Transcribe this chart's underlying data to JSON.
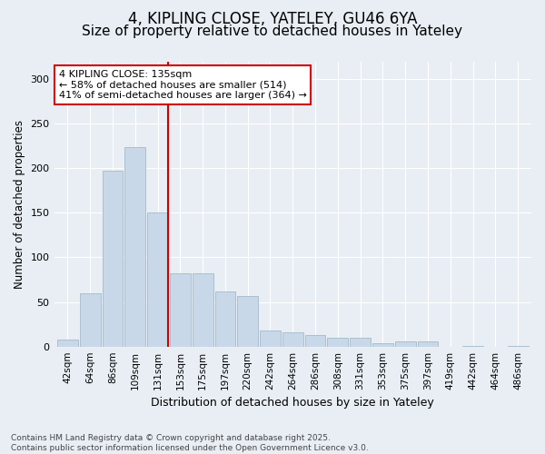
{
  "title1": "4, KIPLING CLOSE, YATELEY, GU46 6YA",
  "title2": "Size of property relative to detached houses in Yateley",
  "xlabel": "Distribution of detached houses by size in Yateley",
  "ylabel": "Number of detached properties",
  "categories": [
    "42sqm",
    "64sqm",
    "86sqm",
    "109sqm",
    "131sqm",
    "153sqm",
    "175sqm",
    "197sqm",
    "220sqm",
    "242sqm",
    "264sqm",
    "286sqm",
    "308sqm",
    "331sqm",
    "353sqm",
    "375sqm",
    "397sqm",
    "419sqm",
    "442sqm",
    "464sqm",
    "486sqm"
  ],
  "values": [
    8,
    60,
    197,
    224,
    150,
    82,
    82,
    62,
    57,
    18,
    16,
    13,
    10,
    10,
    4,
    6,
    6,
    0,
    1,
    0,
    1
  ],
  "bar_color": "#c8d8e8",
  "bar_edge_color": "#aabfd0",
  "bg_color": "#e8eef4",
  "grid_color": "#ffffff",
  "vline_x": 4,
  "vline_color": "#cc0000",
  "annotation_text": "4 KIPLING CLOSE: 135sqm\n← 58% of detached houses are smaller (514)\n41% of semi-detached houses are larger (364) →",
  "annotation_box_color": "#cc0000",
  "annotation_fill": "#ffffff",
  "footer_text": "Contains HM Land Registry data © Crown copyright and database right 2025.\nContains public sector information licensed under the Open Government Licence v3.0.",
  "ylim": [
    0,
    320
  ],
  "yticks": [
    0,
    50,
    100,
    150,
    200,
    250,
    300
  ],
  "title_fontsize": 12,
  "subtitle_fontsize": 11
}
